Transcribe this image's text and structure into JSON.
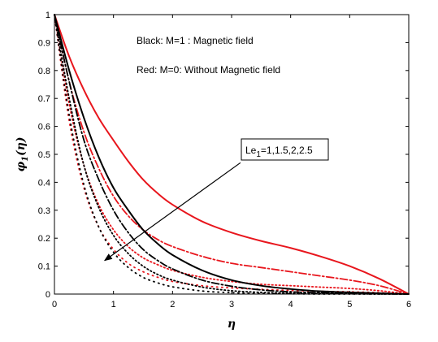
{
  "chart_data": {
    "type": "line",
    "title": "",
    "xlabel": "η",
    "ylabel": {
      "base": "φ",
      "sub": "1",
      "arg": "(η)"
    },
    "xlim": [
      0,
      6
    ],
    "ylim": [
      0,
      1
    ],
    "xticks": [
      0,
      1,
      2,
      3,
      4,
      5,
      6
    ],
    "yticks": [
      0,
      0.1,
      0.2,
      0.3,
      0.4,
      0.5,
      0.6,
      0.7,
      0.8,
      0.9,
      1
    ],
    "xtick_labels": [
      "0",
      "1",
      "2",
      "3",
      "4",
      "5",
      "6"
    ],
    "ytick_labels": [
      "0",
      "0.1",
      "0.2",
      "0.3",
      "0.4",
      "0.5",
      "0.6",
      "0.7",
      "0.8",
      "0.9",
      "1"
    ],
    "grid": false,
    "annotations": {
      "legend_line1": "Black: M=1 :   Magnetic field",
      "legend_line2": "Red:   M=0:   Without Magnetic field",
      "box_label": {
        "base": "Le",
        "sub": "1",
        "rest": "=1,1.5,2,2.5"
      },
      "arrow": {
        "from": [
          3.15,
          0.47
        ],
        "to": [
          0.85,
          0.12
        ]
      }
    },
    "colors": {
      "black": "#000000",
      "red": "#e8161d"
    },
    "series": [
      {
        "color": "#e8161d",
        "style": "solid",
        "x": [
          0,
          0.25,
          0.5,
          0.75,
          1,
          1.25,
          1.5,
          1.75,
          2,
          2.5,
          3,
          3.5,
          4,
          4.5,
          5,
          5.5,
          6
        ],
        "y": [
          1,
          0.85,
          0.73,
          0.63,
          0.55,
          0.475,
          0.41,
          0.36,
          0.32,
          0.26,
          0.22,
          0.19,
          0.165,
          0.135,
          0.1,
          0.055,
          0
        ]
      },
      {
        "color": "#e8161d",
        "style": "dashdot",
        "x": [
          0,
          0.25,
          0.5,
          0.75,
          1,
          1.25,
          1.5,
          1.75,
          2,
          2.5,
          3,
          3.5,
          4,
          4.5,
          5,
          5.5,
          6
        ],
        "y": [
          1,
          0.76,
          0.58,
          0.45,
          0.35,
          0.28,
          0.23,
          0.195,
          0.17,
          0.135,
          0.11,
          0.095,
          0.08,
          0.065,
          0.05,
          0.03,
          0
        ]
      },
      {
        "color": "#e8161d",
        "style": "dotted",
        "x": [
          0,
          0.25,
          0.5,
          0.75,
          1,
          1.25,
          1.5,
          1.75,
          2,
          2.5,
          3,
          3.5,
          4,
          4.5,
          5,
          5.5,
          6
        ],
        "y": [
          1,
          0.68,
          0.46,
          0.32,
          0.23,
          0.17,
          0.13,
          0.105,
          0.085,
          0.06,
          0.045,
          0.035,
          0.03,
          0.025,
          0.02,
          0.012,
          0
        ]
      },
      {
        "color": "#e8161d",
        "style": "dense-dotted",
        "x": [
          0,
          0.25,
          0.5,
          0.75,
          1,
          1.25,
          1.5,
          1.75,
          2,
          2.5,
          3,
          3.5,
          4,
          4.5,
          5,
          5.5,
          6
        ],
        "y": [
          1,
          0.62,
          0.38,
          0.24,
          0.16,
          0.11,
          0.08,
          0.06,
          0.045,
          0.03,
          0.022,
          0.017,
          0.013,
          0.01,
          0.008,
          0.005,
          0
        ]
      },
      {
        "color": "#000000",
        "style": "solid",
        "x": [
          0,
          0.25,
          0.5,
          0.75,
          1,
          1.25,
          1.5,
          1.75,
          2,
          2.5,
          3,
          3.5,
          4,
          4.5,
          5,
          5.5,
          6
        ],
        "y": [
          1,
          0.8,
          0.63,
          0.49,
          0.38,
          0.3,
          0.23,
          0.18,
          0.14,
          0.085,
          0.05,
          0.03,
          0.018,
          0.01,
          0.006,
          0.003,
          0
        ]
      },
      {
        "color": "#000000",
        "style": "dashdot",
        "x": [
          0,
          0.25,
          0.5,
          0.75,
          1,
          1.25,
          1.5,
          1.75,
          2,
          2.5,
          3,
          3.5,
          4,
          4.5,
          5,
          5.5,
          6
        ],
        "y": [
          1,
          0.76,
          0.55,
          0.41,
          0.3,
          0.22,
          0.16,
          0.12,
          0.09,
          0.05,
          0.028,
          0.015,
          0.008,
          0.005,
          0.003,
          0.001,
          0
        ]
      },
      {
        "color": "#000000",
        "style": "dotted",
        "x": [
          0,
          0.25,
          0.5,
          0.75,
          1,
          1.25,
          1.5,
          1.75,
          2,
          2.5,
          3,
          3.5,
          4,
          4.5,
          5,
          5.5,
          6
        ],
        "y": [
          1,
          0.7,
          0.46,
          0.31,
          0.21,
          0.145,
          0.1,
          0.07,
          0.05,
          0.025,
          0.012,
          0.006,
          0.003,
          0.002,
          0.001,
          0,
          0
        ]
      },
      {
        "color": "#000000",
        "style": "dense-dotted",
        "x": [
          0,
          0.25,
          0.5,
          0.75,
          1,
          1.25,
          1.5,
          1.75,
          2,
          2.5,
          3,
          3.5,
          4,
          4.5,
          5,
          5.5,
          6
        ],
        "y": [
          1,
          0.64,
          0.39,
          0.24,
          0.15,
          0.095,
          0.06,
          0.04,
          0.026,
          0.011,
          0.005,
          0.002,
          0.001,
          0,
          0,
          0,
          0
        ]
      }
    ]
  }
}
